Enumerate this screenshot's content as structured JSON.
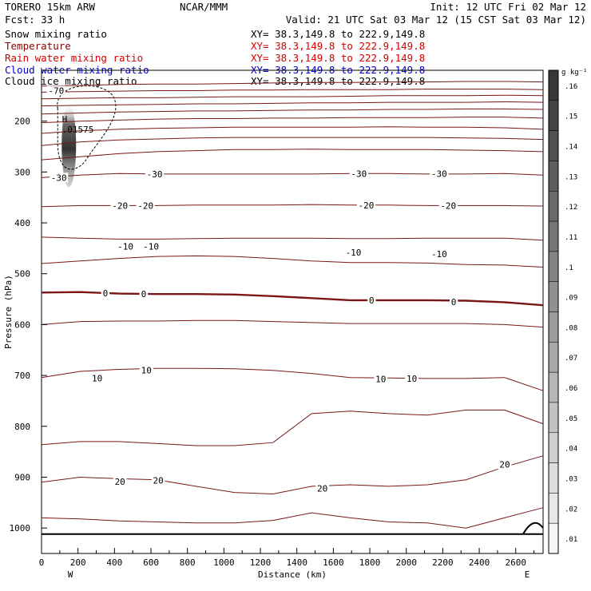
{
  "header": {
    "model": "TORERO  15km ARW",
    "center": "NCAR/MMM",
    "init": "Init: 12 UTC Fri 02 Mar 12",
    "fcst": "Fcst:   33 h",
    "valid": "Valid: 21 UTC Sat 03 Mar 12 (15 CST Sat 03 Mar 12)"
  },
  "fields": [
    {
      "name": "Snow mixing ratio",
      "xy": "XY=  38.3,149.8 to 222.9,149.8",
      "color": "#000000",
      "xy_color": "#000000"
    },
    {
      "name": "Temperature",
      "xy": "XY=  38.3,149.8 to 222.9,149.8",
      "color": "#8b0000",
      "xy_color": "#d40000"
    },
    {
      "name": "Rain water mixing ratio",
      "xy": "XY=  38.3,149.8 to 222.9,149.8",
      "color": "#d40000",
      "xy_color": "#d40000"
    },
    {
      "name": "Cloud water mixing ratio",
      "xy": "XY=  38.3,149.8 to 222.9,149.8",
      "color": "#0000cc",
      "xy_color": "#0000cc"
    },
    {
      "name": "Cloud ice mixing ratio",
      "xy": "XY=  38.3,149.8 to 222.9,149.8",
      "color": "#000000",
      "xy_color": "#000000"
    }
  ],
  "chart_data": {
    "type": "contour-cross-section",
    "xlabel": "Distance (km)",
    "ylabel": "Pressure (hPa)",
    "x_ticks": [
      "0",
      "200",
      "400",
      "600",
      "800",
      "1000",
      "1200",
      "1400",
      "1600",
      "1800",
      "2000",
      "2200",
      "2400",
      "2600"
    ],
    "x_tick_values": [
      0,
      200,
      400,
      600,
      800,
      1000,
      1200,
      1400,
      1600,
      1800,
      2000,
      2200,
      2400,
      2600
    ],
    "xlim": [
      0,
      2750
    ],
    "y_ticks": [
      "200",
      "300",
      "400",
      "500",
      "600",
      "700",
      "800",
      "900",
      "1000"
    ],
    "y_tick_values": [
      200,
      300,
      400,
      500,
      600,
      700,
      800,
      900,
      1000
    ],
    "ylim": [
      100,
      1050
    ],
    "left_end": "W",
    "right_end": "E",
    "max_marker": {
      "label": "H",
      "value": ".01575",
      "x": 130,
      "p": 205
    },
    "isotherm_labels": [
      {
        "text": "-70",
        "x": 80,
        "p": 140
      },
      {
        "text": "-30",
        "x": 95,
        "p": 311
      },
      {
        "text": "-30",
        "x": 620,
        "p": 304
      },
      {
        "text": "-30",
        "x": 1740,
        "p": 303
      },
      {
        "text": "-30",
        "x": 2180,
        "p": 303
      },
      {
        "text": "-20",
        "x": 430,
        "p": 366
      },
      {
        "text": "-20",
        "x": 570,
        "p": 366
      },
      {
        "text": "-20",
        "x": 1780,
        "p": 365
      },
      {
        "text": "-20",
        "x": 2230,
        "p": 366
      },
      {
        "text": "-10",
        "x": 460,
        "p": 446
      },
      {
        "text": "-10",
        "x": 600,
        "p": 446
      },
      {
        "text": "-10",
        "x": 1710,
        "p": 458
      },
      {
        "text": "-10",
        "x": 2180,
        "p": 461
      },
      {
        "text": "0",
        "x": 350,
        "p": 538
      },
      {
        "text": "0",
        "x": 560,
        "p": 540
      },
      {
        "text": "0",
        "x": 1810,
        "p": 552
      },
      {
        "text": "0",
        "x": 2260,
        "p": 555
      },
      {
        "text": "10",
        "x": 305,
        "p": 705
      },
      {
        "text": "10",
        "x": 575,
        "p": 690
      },
      {
        "text": "10",
        "x": 1860,
        "p": 707
      },
      {
        "text": "10",
        "x": 2030,
        "p": 706
      },
      {
        "text": "20",
        "x": 430,
        "p": 909
      },
      {
        "text": "20",
        "x": 640,
        "p": 906
      },
      {
        "text": "20",
        "x": 1540,
        "p": 922
      },
      {
        "text": "20",
        "x": 2540,
        "p": 875
      }
    ],
    "isotherms_hpa": [
      [
        131,
        130,
        128,
        127,
        127,
        126,
        125,
        124,
        124,
        123,
        123,
        122,
        122,
        123
      ],
      [
        143,
        142,
        141,
        140,
        140,
        139,
        139,
        138,
        138,
        138,
        137,
        137,
        137,
        138
      ],
      [
        156,
        155,
        154,
        154,
        153,
        152,
        152,
        152,
        151,
        150,
        150,
        150,
        149,
        150
      ],
      [
        170,
        169,
        168,
        167,
        166,
        166,
        165,
        164,
        164,
        163,
        163,
        163,
        162,
        163
      ],
      [
        186,
        184,
        182,
        181,
        180,
        180,
        179,
        178,
        178,
        177,
        177,
        176,
        176,
        177
      ],
      [
        203,
        200,
        198,
        196,
        195,
        195,
        194,
        194,
        193,
        193,
        193,
        192,
        192,
        194
      ],
      [
        224,
        219,
        216,
        214,
        213,
        212,
        212,
        212,
        212,
        211,
        212,
        212,
        213,
        216
      ],
      [
        248,
        241,
        237,
        235,
        233,
        232,
        232,
        232,
        232,
        232,
        232,
        233,
        234,
        236
      ],
      [
        276,
        270,
        264,
        260,
        258,
        256,
        256,
        255,
        256,
        256,
        256,
        257,
        258,
        260
      ],
      [
        311,
        306,
        303,
        304,
        304,
        304,
        304,
        304,
        303,
        303,
        304,
        304,
        303,
        306
      ],
      [
        368,
        366,
        366,
        366,
        365,
        365,
        365,
        364,
        365,
        365,
        366,
        366,
        366,
        367
      ],
      [
        428,
        430,
        432,
        432,
        431,
        430,
        430,
        430,
        431,
        431,
        430,
        430,
        430,
        434
      ],
      [
        480,
        475,
        470,
        466,
        465,
        466,
        470,
        475,
        478,
        478,
        479,
        482,
        483,
        487
      ],
      [
        537,
        536,
        539,
        540,
        540,
        541,
        544,
        548,
        552,
        552,
        552,
        553,
        556,
        562
      ],
      [
        600,
        594,
        593,
        593,
        592,
        592,
        594,
        596,
        598,
        598,
        598,
        598,
        600,
        605
      ],
      [
        704,
        692,
        688,
        686,
        686,
        687,
        690,
        696,
        704,
        705,
        706,
        706,
        704,
        730
      ],
      [
        836,
        830,
        830,
        834,
        838,
        838,
        832,
        775,
        770,
        775,
        778,
        768,
        768,
        795
      ],
      [
        910,
        900,
        903,
        905,
        918,
        930,
        933,
        918,
        915,
        918,
        915,
        905,
        880,
        858
      ],
      [
        980,
        982,
        986,
        988,
        990,
        990,
        985,
        970,
        980,
        988,
        990,
        1000,
        980,
        960
      ]
    ],
    "isotherm_bold_index": 13,
    "colorbar": {
      "unit": "g kg⁻¹",
      "levels": [
        ".16",
        ".15",
        ".14",
        ".13",
        ".12",
        ".11",
        ".1",
        ".09",
        ".08",
        ".07",
        ".06",
        ".05",
        ".04",
        ".03",
        ".02",
        ".01"
      ],
      "level_values": [
        0.16,
        0.15,
        0.14,
        0.13,
        0.12,
        0.11,
        0.1,
        0.09,
        0.08,
        0.07,
        0.06,
        0.05,
        0.04,
        0.03,
        0.02,
        0.01
      ]
    },
    "terrain_hpa": [
      1012,
      1012,
      1012,
      1012,
      1012,
      1012,
      1012,
      1012,
      1012,
      1012,
      1012,
      1012,
      1012,
      1012
    ],
    "ice_hint": {
      "x": 150,
      "p_top": 165,
      "p_bottom": 330
    }
  }
}
